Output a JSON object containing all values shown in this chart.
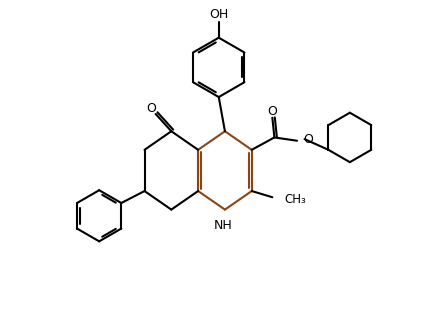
{
  "line_color": "#000000",
  "bond_color_brown": "#8B4513",
  "background": "#ffffff",
  "line_width": 1.5,
  "font_size": 9,
  "xlim": [
    0,
    10
  ],
  "ylim": [
    0,
    7.5
  ],
  "figsize": [
    4.21,
    3.12
  ],
  "dpi": 100
}
